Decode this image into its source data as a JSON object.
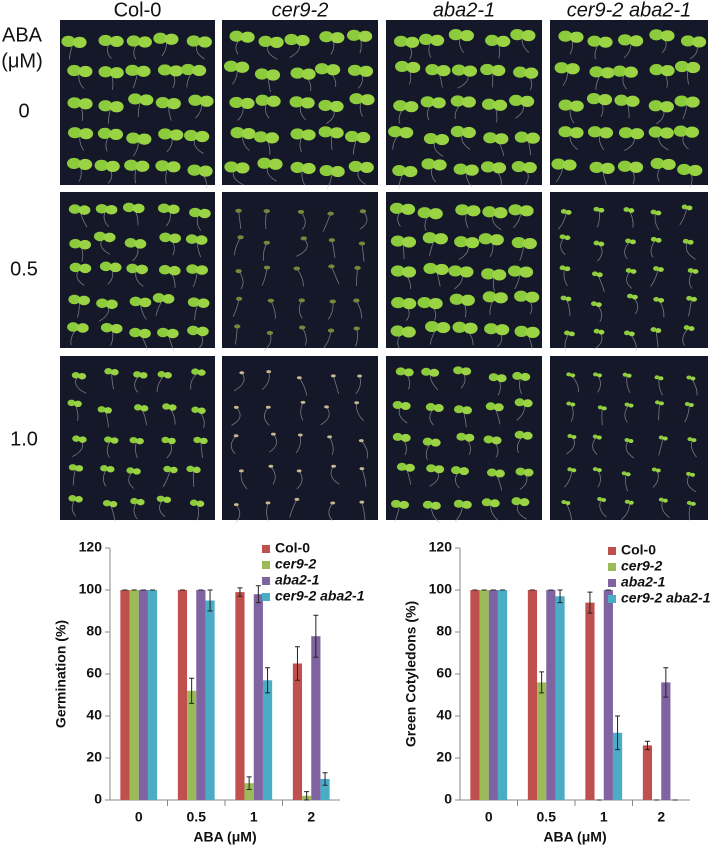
{
  "figure": {
    "columns": [
      "Col-0",
      "cer9-2",
      "aba2-1",
      "cer9-2 aba2-1"
    ],
    "row_header": [
      "ABA",
      "(μM)"
    ],
    "rows": [
      "0",
      "0.5",
      "1.0"
    ]
  },
  "chart_data": [
    {
      "type": "bar",
      "ylabel": "Germination (%)",
      "xlabel": "ABA (μM)",
      "categories": [
        "0",
        "0.5",
        "1",
        "2"
      ],
      "ylim": [
        0,
        120
      ],
      "yticks": [
        0,
        20,
        40,
        60,
        80,
        100,
        120
      ],
      "legend": "top-right",
      "series": [
        {
          "name": "Col-0",
          "color": "#c0504d",
          "values": [
            100,
            100,
            99,
            65
          ],
          "errors": [
            0,
            0,
            2,
            8
          ]
        },
        {
          "name": "cer9-2",
          "color": "#9bbb59",
          "values": [
            100,
            52,
            8,
            2
          ],
          "errors": [
            0,
            6,
            3,
            2
          ]
        },
        {
          "name": "aba2-1",
          "color": "#8064a2",
          "values": [
            100,
            100,
            98,
            78
          ],
          "errors": [
            0,
            0,
            4,
            10
          ]
        },
        {
          "name": "cer9-2 aba2-1",
          "color": "#4bacc6",
          "values": [
            100,
            95,
            57,
            10
          ],
          "errors": [
            0,
            5,
            6,
            3
          ]
        }
      ]
    },
    {
      "type": "bar",
      "ylabel": "Green Cotyledons (%)",
      "xlabel": "ABA (μM)",
      "categories": [
        "0",
        "0.5",
        "1",
        "2"
      ],
      "ylim": [
        0,
        120
      ],
      "yticks": [
        0,
        20,
        40,
        60,
        80,
        100,
        120
      ],
      "legend": "top-right",
      "series": [
        {
          "name": "Col-0",
          "color": "#c0504d",
          "values": [
            100,
            100,
            94,
            26
          ],
          "errors": [
            0,
            0,
            5,
            2
          ]
        },
        {
          "name": "cer9-2",
          "color": "#9bbb59",
          "values": [
            100,
            56,
            0,
            0
          ],
          "errors": [
            0,
            5,
            0,
            0
          ]
        },
        {
          "name": "aba2-1",
          "color": "#8064a2",
          "values": [
            100,
            100,
            100,
            56
          ],
          "errors": [
            0,
            0,
            0,
            7
          ]
        },
        {
          "name": "cer9-2 aba2-1",
          "color": "#4bacc6",
          "values": [
            100,
            97,
            32,
            0
          ],
          "errors": [
            0,
            3,
            8,
            0
          ]
        }
      ]
    }
  ]
}
